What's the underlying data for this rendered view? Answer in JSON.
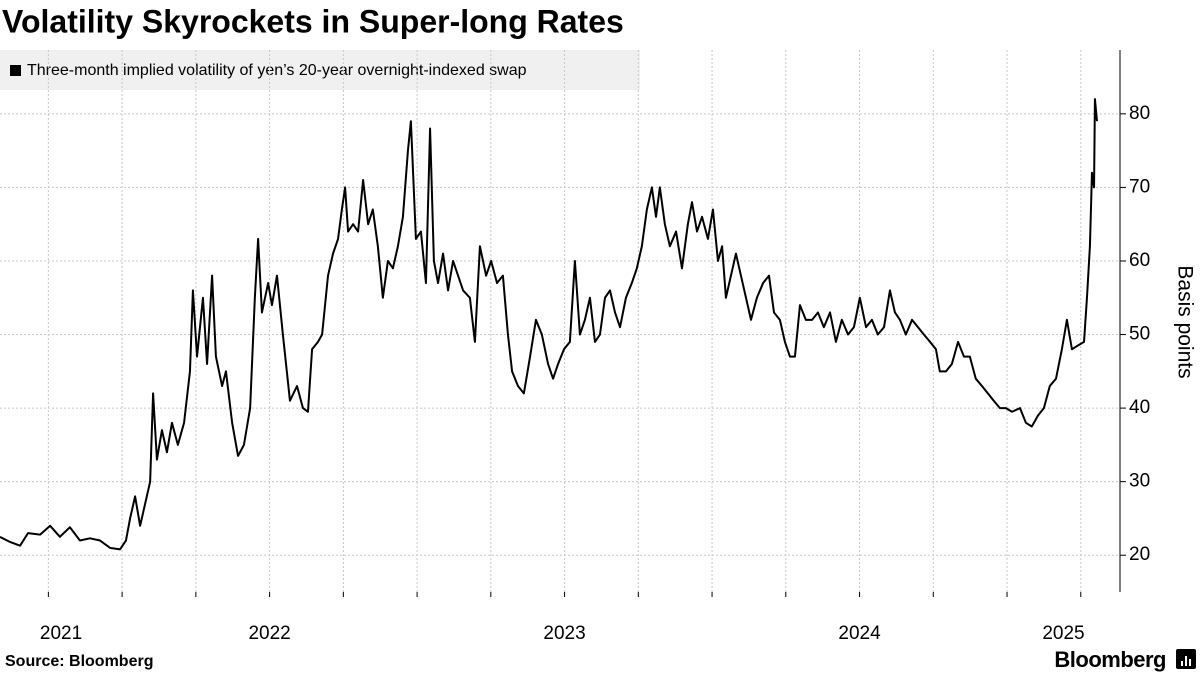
{
  "chart_data": {
    "type": "line",
    "title": "Volatility Skyrockets in Super-long Rates",
    "y_label": "Basis points",
    "source": "Source: Bloomberg",
    "logo": "Bloomberg",
    "xlim": [
      2021.586,
      2025.383
    ],
    "xticks": [
      2021,
      2022,
      2023,
      2024,
      2025
    ],
    "xgrid": [
      2021.75,
      2022,
      2022.25,
      2022.5,
      2022.75,
      2023,
      2023.25,
      2023.5,
      2023.75,
      2024,
      2024.25,
      2024.5,
      2024.75,
      2025,
      2025.25
    ],
    "ylim": [
      15,
      88
    ],
    "yticks": [
      20,
      30,
      40,
      50,
      60,
      70,
      80
    ],
    "grid": true,
    "x": [
      2021.586,
      2021.62,
      2021.654,
      2021.681,
      2021.722,
      2021.756,
      2021.789,
      2021.823,
      2021.857,
      2021.891,
      2021.925,
      2021.959,
      2021.993,
      2022.013,
      2022.027,
      2022.044,
      2022.061,
      2022.078,
      2022.095,
      2022.105,
      2022.118,
      2022.135,
      2022.152,
      2022.169,
      2022.189,
      2022.21,
      2022.23,
      2022.24,
      2022.254,
      2022.274,
      2022.288,
      2022.305,
      2022.318,
      2022.339,
      2022.352,
      2022.373,
      2022.393,
      2022.413,
      2022.434,
      2022.45,
      2022.461,
      2022.474,
      2022.495,
      2022.508,
      2022.525,
      2022.545,
      2022.569,
      2022.593,
      2022.613,
      2022.63,
      2022.644,
      2022.664,
      2022.678,
      2022.698,
      2022.715,
      2022.732,
      2022.745,
      2022.756,
      2022.766,
      2022.783,
      2022.8,
      2022.817,
      2022.834,
      2022.85,
      2022.867,
      2022.884,
      2022.901,
      2022.918,
      2022.935,
      2022.952,
      2022.969,
      2022.979,
      2022.996,
      2023.013,
      2023.03,
      2023.044,
      2023.057,
      2023.071,
      2023.088,
      2023.105,
      2023.122,
      2023.139,
      2023.156,
      2023.179,
      2023.196,
      2023.213,
      2023.234,
      2023.251,
      2023.271,
      2023.291,
      2023.308,
      2023.322,
      2023.342,
      2023.362,
      2023.383,
      2023.403,
      2023.423,
      2023.444,
      2023.461,
      2023.478,
      2023.498,
      2023.518,
      2023.535,
      2023.552,
      2023.569,
      2023.586,
      2023.603,
      2023.62,
      2023.637,
      2023.654,
      2023.671,
      2023.688,
      2023.708,
      2023.728,
      2023.745,
      2023.762,
      2023.779,
      2023.796,
      2023.81,
      2023.823,
      2023.84,
      2023.857,
      2023.878,
      2023.898,
      2023.918,
      2023.932,
      2023.949,
      2023.966,
      2023.986,
      2024.003,
      2024.02,
      2024.034,
      2024.047,
      2024.064,
      2024.081,
      2024.098,
      2024.115,
      2024.132,
      2024.152,
      2024.173,
      2024.193,
      2024.21,
      2024.23,
      2024.247,
      2024.264,
      2024.281,
      2024.298,
      2024.318,
      2024.339,
      2024.359,
      2024.379,
      2024.4,
      2024.42,
      2024.44,
      2024.461,
      2024.481,
      2024.501,
      2024.522,
      2024.542,
      2024.562,
      2024.583,
      2024.603,
      2024.62,
      2024.637,
      2024.657,
      2024.678,
      2024.698,
      2024.718,
      2024.739,
      2024.759,
      2024.772,
      2024.793,
      2024.813,
      2024.834,
      2024.854,
      2024.874,
      2024.894,
      2024.915,
      2024.935,
      2024.955,
      2024.976,
      2024.996,
      2025.017,
      2025.044,
      2025.064,
      2025.084,
      2025.105,
      2025.125,
      2025.145,
      2025.166,
      2025.186,
      2025.203,
      2025.22,
      2025.24,
      2025.261,
      2025.271,
      2025.281,
      2025.288,
      2025.295,
      2025.298,
      2025.305
    ],
    "series": [
      {
        "name": "Three-month implied volatility of yen’s 20-year overnight-indexed swap",
        "color": "#000000",
        "values": [
          22.5,
          21.8,
          21.3,
          23,
          22.8,
          24,
          22.5,
          23.8,
          22,
          22.3,
          22,
          21,
          20.8,
          22,
          25,
          28,
          24,
          27,
          30,
          42,
          33,
          37,
          34,
          38,
          35,
          38,
          45,
          56,
          47,
          55,
          46,
          58,
          47,
          43,
          45,
          38,
          33.5,
          35,
          40,
          55,
          63,
          53,
          57,
          54,
          58,
          50,
          41,
          43,
          40,
          39.5,
          48,
          49,
          50,
          58,
          61,
          63,
          67,
          70,
          64,
          65,
          64,
          71,
          65,
          67,
          62,
          55,
          60,
          59,
          62,
          66,
          75,
          79,
          63,
          64,
          57,
          78,
          60,
          57,
          61,
          56,
          60,
          58,
          56,
          55,
          49,
          62,
          58,
          60,
          57,
          58,
          50,
          45,
          43,
          42,
          47,
          52,
          50,
          46,
          44,
          46,
          48,
          49,
          60,
          50,
          52,
          55,
          49,
          50,
          55,
          56,
          53,
          51,
          55,
          57,
          59,
          62,
          67,
          70,
          66,
          70,
          65,
          62,
          64,
          59,
          65,
          68,
          64,
          66,
          63,
          67,
          60,
          62,
          55,
          58,
          61,
          58,
          55,
          52,
          55,
          57,
          58,
          53,
          52,
          49,
          47,
          47,
          54,
          52,
          52,
          53,
          51,
          53,
          49,
          52,
          50,
          51,
          55,
          51,
          52,
          50,
          51,
          56,
          53,
          52,
          50,
          52,
          51,
          50,
          49,
          48,
          45,
          45,
          46,
          49,
          47,
          47,
          44,
          43,
          42,
          41,
          40,
          40,
          39.5,
          40,
          38,
          37.5,
          39,
          40,
          43,
          44,
          48,
          52,
          48,
          48.5,
          49,
          55,
          62,
          72,
          70,
          82,
          79
        ]
      }
    ]
  }
}
